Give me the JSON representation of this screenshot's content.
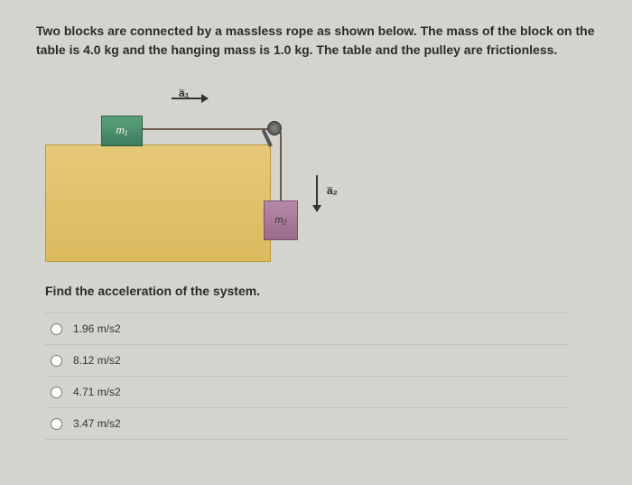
{
  "question": {
    "text": "Two blocks are connected by a massless rope as shown below. The mass of the block on the table is 4.0 kg and the hanging mass is 1.0 kg. The table and the pulley are frictionless.",
    "prompt": "Find the acceleration of the system."
  },
  "diagram": {
    "m1_label": "m₁",
    "m2_label": "m₂",
    "a1_label": "a̅₁",
    "a2_label": "a̅₂",
    "colors": {
      "background": "#d4d4ce",
      "table": "#e0c06a",
      "block1": "#4a8e6a",
      "block2": "#a87a9a",
      "rope": "#6b5a4a"
    }
  },
  "options": [
    {
      "label": "1.96 m/s2",
      "selected": false
    },
    {
      "label": "8.12 m/s2",
      "selected": false
    },
    {
      "label": "4.71 m/s2",
      "selected": false
    },
    {
      "label": "3.47 m/s2",
      "selected": false
    }
  ]
}
